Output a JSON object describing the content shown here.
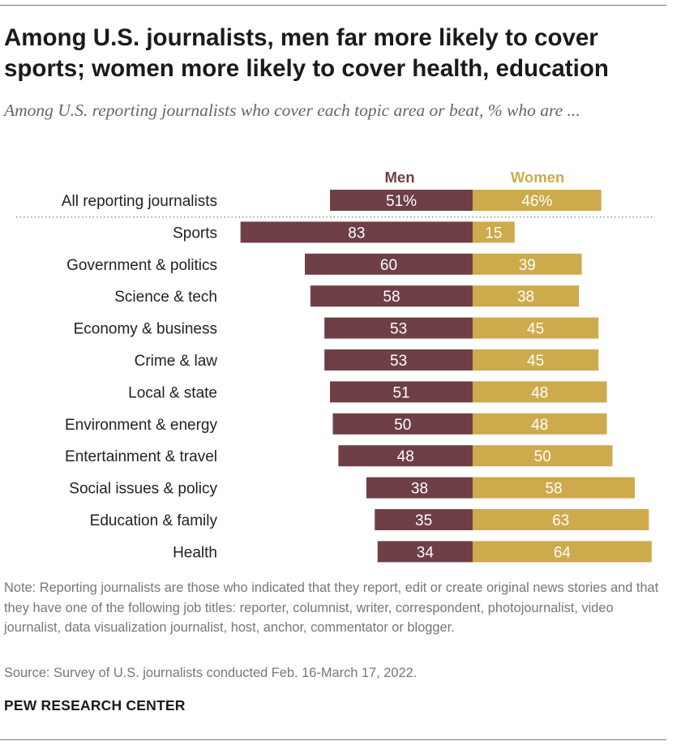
{
  "header": {
    "title": "Among U.S. journalists, men far more likely to cover sports; women more likely to cover health, education",
    "subtitle": "Among U.S. reporting journalists who cover each topic area or beat, % who are ..."
  },
  "footer": {
    "note": "Note: Reporting journalists are those who indicated that they report, edit or create original news stories and that they have one of the following job titles: reporter, columnist, writer, correspondent, photojournalist, video journalist, data visualization journalist, host, anchor, commentator or blogger.",
    "source": "Source: Survey of U.S. journalists conducted Feb. 16-March 17, 2022.",
    "brand": "PEW RESEARCH CENTER"
  },
  "colors": {
    "men": "#6e3f47",
    "women": "#cdaa4c",
    "divider": "#999999"
  },
  "chart_data": {
    "type": "bar",
    "orientation": "horizontal-diverging",
    "title": "Among U.S. journalists, men far more likely to cover sports; women more likely to cover health, education",
    "categories": [
      "All reporting journalists",
      "Sports",
      "Government & politics",
      "Science & tech",
      "Economy & business",
      "Crime & law",
      "Local & state",
      "Environment & energy",
      "Entertainment & travel",
      "Social issues & policy",
      "Education & family",
      "Health"
    ],
    "series": [
      {
        "name": "Men",
        "direction": "left",
        "values": [
          51,
          83,
          60,
          58,
          53,
          53,
          51,
          50,
          48,
          38,
          35,
          34
        ],
        "labels": [
          "51%",
          "83",
          "60",
          "58",
          "53",
          "53",
          "51",
          "50",
          "48",
          "38",
          "35",
          "34"
        ]
      },
      {
        "name": "Women",
        "direction": "right",
        "values": [
          46,
          15,
          39,
          38,
          45,
          45,
          48,
          48,
          50,
          58,
          63,
          64
        ],
        "labels": [
          "46%",
          "15",
          "39",
          "38",
          "45",
          "45",
          "48",
          "48",
          "50",
          "58",
          "63",
          "64"
        ]
      }
    ],
    "unit": "%",
    "xlim": [
      0,
      100
    ],
    "legend": "top, above bars",
    "grid": false,
    "divider_after_first_row": true
  }
}
